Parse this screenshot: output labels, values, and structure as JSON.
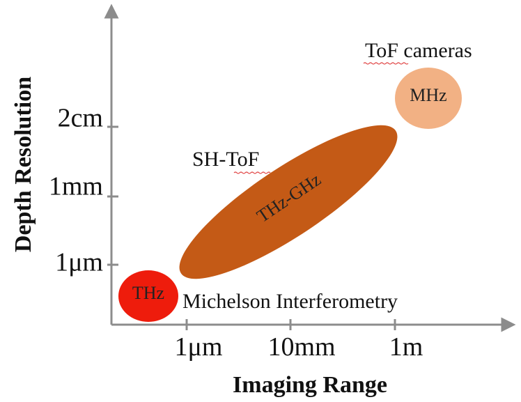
{
  "x_axis": {
    "title": "Imaging Range",
    "ticks": [
      "1μm",
      "10mm",
      "1m"
    ]
  },
  "y_axis": {
    "title": "Depth Resolution",
    "ticks": [
      "1μm",
      "1mm",
      "2cm"
    ]
  },
  "regions": [
    {
      "label": "THz",
      "color": "#ee1c0c"
    },
    {
      "label": "THz-GHz",
      "color": "#c45a16"
    },
    {
      "label": "MHz",
      "color": "#f2b184"
    }
  ],
  "annotations": {
    "michelson": "Michelson Interferometry",
    "sh_tof": "SH-ToF",
    "tof_cameras": "ToF cameras"
  },
  "colors": {
    "axis": "#8c8c8c"
  }
}
